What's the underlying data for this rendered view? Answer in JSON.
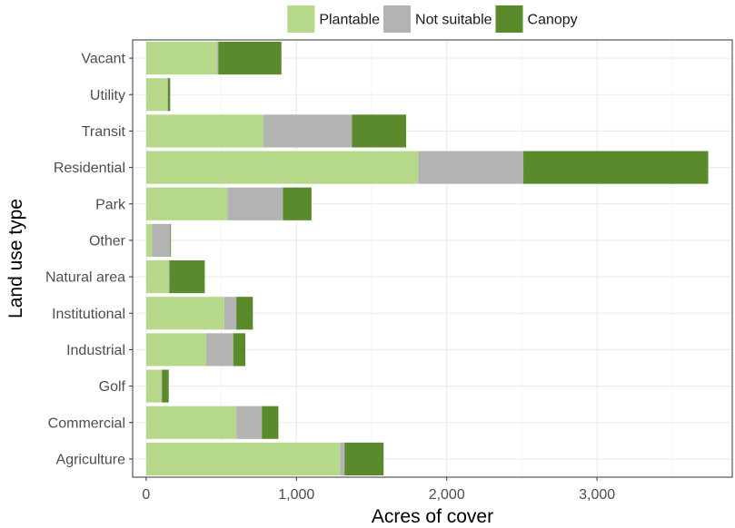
{
  "chart_data": {
    "type": "bar",
    "orientation": "horizontal",
    "stacked": true,
    "xlabel": "Acres of cover",
    "ylabel": "Land use type",
    "xlim": [
      -90,
      3900
    ],
    "xticks": [
      0,
      1000,
      2000,
      3000
    ],
    "xtick_labels": [
      "0",
      "1,000",
      "2,000",
      "3,000"
    ],
    "grid": true,
    "legend_position": "top",
    "categories": [
      "Vacant",
      "Utility",
      "Transit",
      "Residential",
      "Park",
      "Other",
      "Natural area",
      "Institutional",
      "Industrial",
      "Golf",
      "Commercial",
      "Agriculture"
    ],
    "series": [
      {
        "name": "Plantable",
        "color": "#b5d989",
        "values": [
          470,
          140,
          780,
          1810,
          540,
          40,
          150,
          520,
          400,
          100,
          600,
          1290
        ]
      },
      {
        "name": "Not suitable",
        "color": "#b3b3b3",
        "values": [
          10,
          5,
          590,
          700,
          370,
          120,
          5,
          80,
          180,
          5,
          170,
          30
        ]
      },
      {
        "name": "Canopy",
        "color": "#5a8a2b",
        "values": [
          420,
          15,
          360,
          1230,
          190,
          5,
          235,
          110,
          80,
          45,
          110,
          260
        ]
      }
    ]
  }
}
